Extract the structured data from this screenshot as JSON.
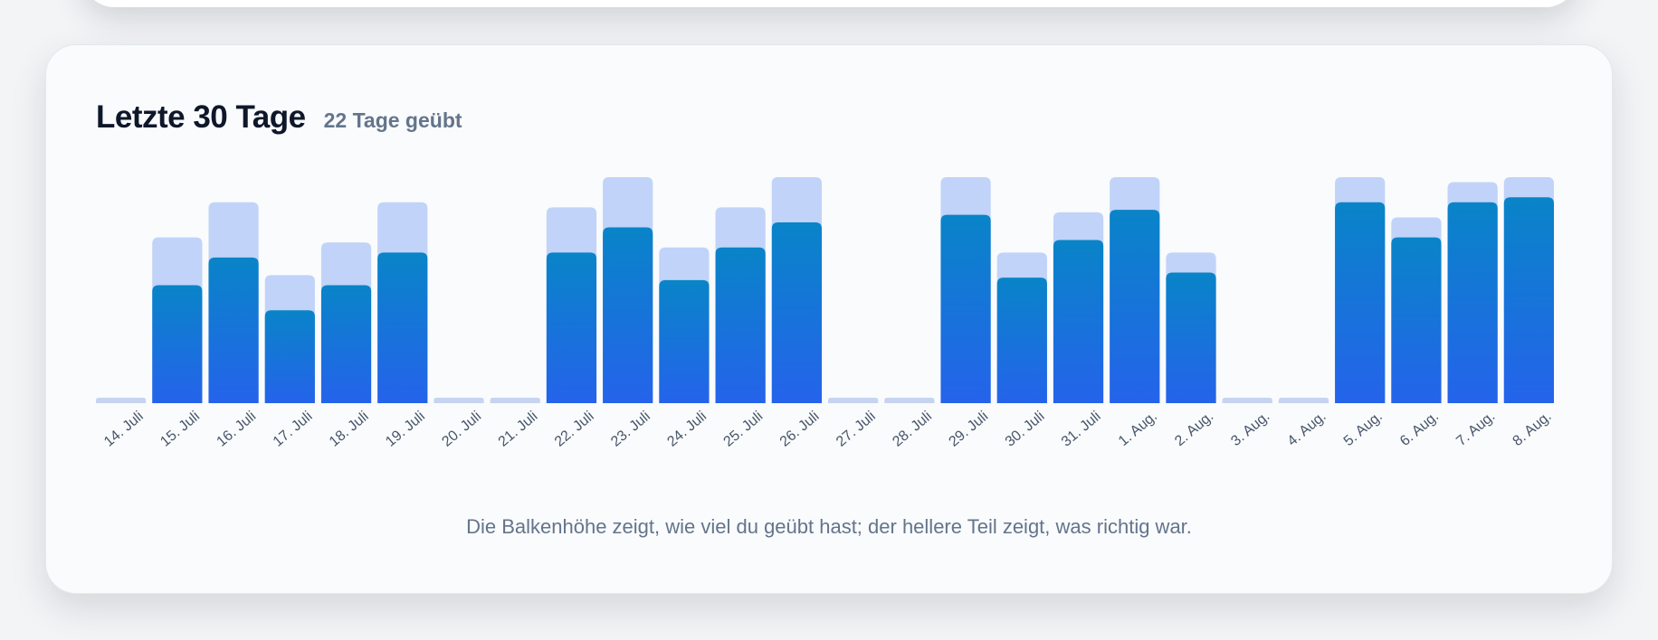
{
  "header": {
    "title": "Letzte 30 Tage",
    "subtitle": "22 Tage geübt"
  },
  "caption": "Die Balkenhöhe zeigt, wie viel du geübt hast; der hellere Teil zeigt, was richtig war.",
  "colors": {
    "total": "#c1d3f8",
    "correct_top": "#0984c8",
    "correct_bottom": "#2563eb",
    "empty": "#c6d4f0"
  },
  "chart_data": {
    "type": "bar",
    "categories": [
      "14. Juli",
      "15. Juli",
      "16. Juli",
      "17. Juli",
      "18. Juli",
      "19. Juli",
      "20. Juli",
      "21. Juli",
      "22. Juli",
      "23. Juli",
      "24. Juli",
      "25. Juli",
      "26. Juli",
      "27. Juli",
      "28. Juli",
      "29. Juli",
      "30. Juli",
      "31. Juli",
      "1. Aug.",
      "2. Aug.",
      "3. Aug.",
      "4. Aug.",
      "5. Aug.",
      "6. Aug.",
      "7. Aug.",
      "8. Aug."
    ],
    "series": [
      {
        "values": [
          0,
          66,
          80,
          51,
          64,
          80,
          0,
          0,
          78,
          90,
          62,
          78,
          90,
          0,
          0,
          90,
          60,
          76,
          90,
          60,
          0,
          0,
          90,
          74,
          88,
          90
        ]
      },
      {
        "values": [
          0,
          47,
          58,
          37,
          47,
          60,
          0,
          0,
          60,
          70,
          49,
          62,
          72,
          0,
          0,
          75,
          50,
          65,
          77,
          52,
          0,
          0,
          80,
          66,
          80,
          82
        ]
      }
    ],
    "ylim": [
      0,
      90
    ],
    "grid": false,
    "legend": "none"
  }
}
